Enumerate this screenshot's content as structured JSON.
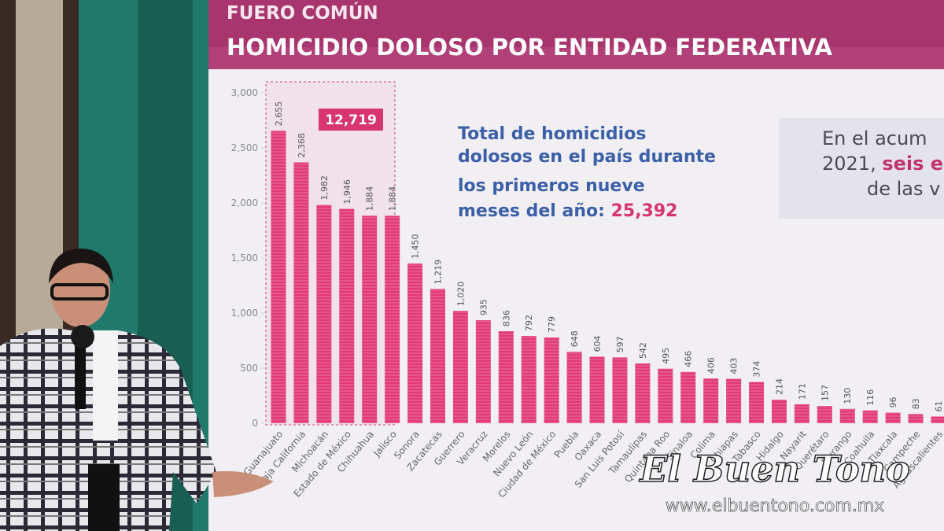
{
  "chart_data": {
    "type": "bar",
    "kicker": "FUERO COMÚN",
    "title": "HOMICIDIO DOLOSO POR ENTIDAD FEDERATIVA",
    "categories": [
      "Guanajuato",
      "Baja California",
      "Michoacán",
      "Estado de México",
      "Chihuahua",
      "Jalisco",
      "Sonora",
      "Zacatecas",
      "Guerrero",
      "Veracruz",
      "Morelos",
      "Nuevo León",
      "Ciudad de México",
      "Puebla",
      "Oaxaca",
      "San Luis Potosí",
      "Tamaulipas",
      "Quintana Roo",
      "Sinaloa",
      "Colima",
      "Chiapas",
      "Tabasco",
      "Hidalgo",
      "Nayarit",
      "Querétaro",
      "Durango",
      "Coahuila",
      "Tlaxcala",
      "Campeche",
      "Aguascalientes"
    ],
    "values": [
      2655,
      2368,
      1982,
      1946,
      1884,
      1884,
      1450,
      1219,
      1020,
      935,
      836,
      792,
      779,
      648,
      604,
      597,
      542,
      495,
      466,
      406,
      403,
      374,
      214,
      171,
      157,
      130,
      116,
      96,
      83,
      61
    ],
    "value_labels": [
      "2,655",
      "2,368",
      "1,982",
      "1,946",
      "1,884",
      "1,884",
      "1,450",
      "1,219",
      "1,020",
      "935",
      "836",
      "792",
      "779",
      "648",
      "604",
      "597",
      "542",
      "495",
      "466",
      "406",
      "403",
      "374",
      "214",
      "171",
      "157",
      "130",
      "116",
      "96",
      "83",
      "61"
    ],
    "color": "#e23a78",
    "ylim": [
      0,
      3000
    ],
    "yticks": [
      0,
      500,
      {
        "value": 1000,
        "label": "1,000"
      },
      {
        "value": 1500,
        "label": "1,500"
      },
      {
        "value": 2000,
        "label": "2,000"
      },
      {
        "value": 2500,
        "label": "2,500"
      },
      {
        "value": 3000,
        "label": "3,000"
      }
    ],
    "highlight_label": "12,719",
    "total_text": [
      "Total de homicidios",
      "dolosos en el país durante",
      "los primeros nueve",
      "meses del año:"
    ],
    "total_value": "25,392",
    "side_text": [
      "En el acum",
      "2021,",
      "seis es",
      "de las v"
    ],
    "watermark": [
      "El Buen Tono",
      "www.elbuentono.com.mx"
    ]
  }
}
